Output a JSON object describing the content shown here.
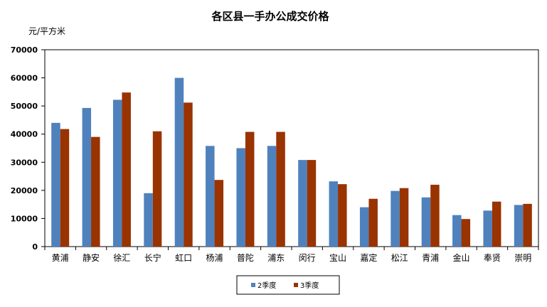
{
  "chart_data": {
    "type": "bar",
    "title": "各区县一手办公成交价格",
    "unit_label": "元/平方米",
    "categories": [
      "黄浦",
      "静安",
      "徐汇",
      "长宁",
      "虹口",
      "杨浦",
      "普陀",
      "浦东",
      "闵行",
      "宝山",
      "嘉定",
      "松江",
      "青浦",
      "金山",
      "奉贤",
      "崇明"
    ],
    "series": [
      {
        "name": "2季度",
        "color": "#4F81BD",
        "values": [
          44000,
          49300,
          52200,
          19000,
          60000,
          35800,
          35000,
          35800,
          30800,
          23200,
          14000,
          19800,
          17500,
          11200,
          12800,
          14800
        ]
      },
      {
        "name": "3季度",
        "color": "#993300",
        "values": [
          41800,
          39000,
          54800,
          41000,
          51200,
          23700,
          40800,
          40800,
          30800,
          22200,
          17000,
          20800,
          22000,
          9800,
          16000,
          15200
        ]
      }
    ],
    "ylim": [
      0,
      70000
    ],
    "yticks": [
      0,
      10000,
      20000,
      30000,
      40000,
      50000,
      60000,
      70000
    ],
    "legend_position": "bottom",
    "grid": false
  }
}
